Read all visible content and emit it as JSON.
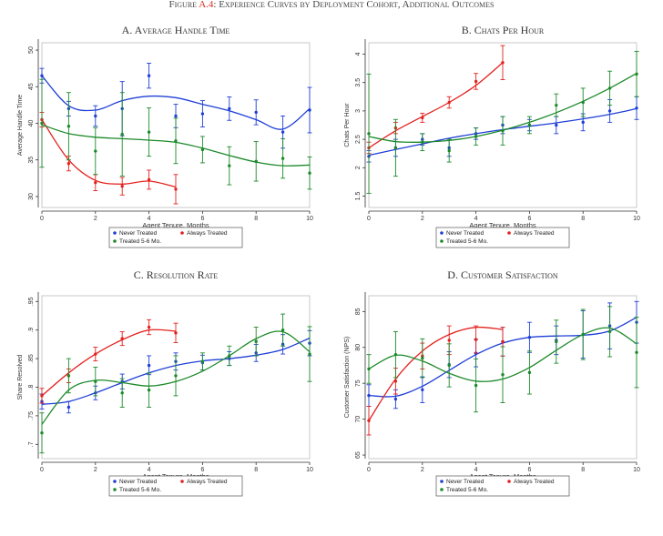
{
  "figure": {
    "title_prefix": "Figure ",
    "title_ref": "A.4",
    "title_suffix": ": Experience Curves by Deployment Cohort, Additional Outcomes"
  },
  "colors": {
    "never": "#1f3fd6",
    "always": "#e3221e",
    "treated56": "#1c8a2a"
  },
  "legend": {
    "never": "Never Treated",
    "always": "Always Treated",
    "treated56": "Treated 5-6 Mo."
  },
  "chart_data": [
    {
      "type": "scatter",
      "title": "A. Average Handle Time",
      "xlabel": "Agent Tenure, Months",
      "ylabel": "Average Handle Time",
      "xlim": [
        0,
        10
      ],
      "ylim": [
        28.5,
        51
      ],
      "xticks": [
        0,
        2,
        4,
        6,
        8,
        10
      ],
      "yticks": [
        30,
        35,
        40,
        45,
        50
      ],
      "ytick_labels": [
        "30",
        "35",
        "40",
        "45",
        "50"
      ],
      "series": [
        {
          "name": "Never Treated",
          "key": "never",
          "x": [
            0,
            1,
            2,
            3,
            4,
            5,
            6,
            7,
            8,
            9,
            10
          ],
          "y": [
            46.5,
            42.0,
            41.0,
            42.0,
            46.5,
            41.0,
            41.3,
            42.0,
            41.5,
            38.8,
            41.8
          ],
          "lo": [
            45.5,
            41.0,
            39.6,
            38.3,
            44.8,
            39.4,
            39.5,
            40.4,
            39.8,
            36.6,
            38.7
          ],
          "hi": [
            47.5,
            43.0,
            42.4,
            45.7,
            48.2,
            42.6,
            43.1,
            43.6,
            43.2,
            41.0,
            44.9
          ],
          "fit": [
            46.5,
            42.4,
            41.8,
            43.1,
            43.7,
            43.5,
            42.6,
            41.7,
            40.5,
            39.2,
            42.0
          ]
        },
        {
          "name": "Always Treated",
          "key": "always",
          "x": [
            0,
            1,
            2,
            3,
            4,
            5
          ],
          "y": [
            40.5,
            34.5,
            31.9,
            31.4,
            32.3,
            31.0
          ],
          "lo": [
            39.5,
            33.5,
            30.8,
            30.2,
            31.0,
            29.0
          ],
          "hi": [
            41.5,
            35.5,
            33.0,
            32.6,
            33.6,
            33.0
          ],
          "fit": [
            40.5,
            35.0,
            32.2,
            31.7,
            32.1,
            31.3
          ]
        },
        {
          "name": "Treated 5-6 Mo.",
          "key": "treated56",
          "x": [
            0,
            1,
            2,
            3,
            4,
            5,
            6,
            7,
            8,
            9,
            10
          ],
          "y": [
            40.0,
            39.6,
            36.2,
            38.5,
            38.8,
            37.6,
            36.4,
            34.2,
            34.8,
            35.2,
            33.2
          ],
          "lo": [
            34.0,
            35.0,
            33.0,
            32.8,
            35.5,
            34.5,
            34.6,
            31.6,
            32.1,
            32.5,
            31.0
          ],
          "hi": [
            46.0,
            44.2,
            39.4,
            44.2,
            42.1,
            40.7,
            38.2,
            36.8,
            37.5,
            37.9,
            35.4
          ],
          "fit": [
            39.8,
            38.6,
            38.1,
            37.9,
            37.7,
            37.4,
            36.6,
            35.6,
            34.7,
            34.2,
            34.3
          ]
        }
      ]
    },
    {
      "type": "scatter",
      "title": "B. Chats Per Hour",
      "xlabel": "Agent Tenure, Months",
      "ylabel": "Chats Per Hour",
      "xlim": [
        0,
        10
      ],
      "ylim": [
        1.3,
        4.2
      ],
      "xticks": [
        0,
        2,
        4,
        6,
        8,
        10
      ],
      "yticks": [
        1.5,
        2,
        2.5,
        3,
        3.5,
        4
      ],
      "ytick_labels": [
        "1.5",
        "2",
        "2.5",
        "3",
        "3.5",
        "4"
      ],
      "series": [
        {
          "name": "Never Treated",
          "key": "never",
          "x": [
            0,
            1,
            2,
            3,
            4,
            5,
            6,
            7,
            8,
            9,
            10
          ],
          "y": [
            2.2,
            2.35,
            2.5,
            2.35,
            2.6,
            2.75,
            2.75,
            2.75,
            2.8,
            3.0,
            3.05
          ],
          "lo": [
            2.1,
            2.2,
            2.4,
            2.2,
            2.5,
            2.6,
            2.65,
            2.6,
            2.65,
            2.8,
            2.85
          ],
          "hi": [
            2.3,
            2.5,
            2.6,
            2.5,
            2.7,
            2.9,
            2.85,
            2.9,
            2.95,
            3.2,
            3.25
          ],
          "fit": [
            2.22,
            2.32,
            2.42,
            2.52,
            2.6,
            2.67,
            2.73,
            2.79,
            2.86,
            2.94,
            3.04
          ]
        },
        {
          "name": "Always Treated",
          "key": "always",
          "x": [
            0,
            1,
            2,
            3,
            4,
            5
          ],
          "y": [
            2.35,
            2.7,
            2.88,
            3.15,
            3.52,
            3.85
          ],
          "lo": [
            2.25,
            2.6,
            2.8,
            3.05,
            3.38,
            3.55
          ],
          "hi": [
            2.45,
            2.8,
            2.96,
            3.25,
            3.66,
            4.15
          ],
          "fit": [
            2.35,
            2.65,
            2.9,
            3.15,
            3.45,
            3.85
          ]
        },
        {
          "name": "Treated 5-6 Mo.",
          "key": "treated56",
          "x": [
            0,
            1,
            2,
            3,
            4,
            5,
            6,
            7,
            8,
            9,
            10
          ],
          "y": [
            2.6,
            2.35,
            2.45,
            2.3,
            2.55,
            2.65,
            2.75,
            3.1,
            3.15,
            3.4,
            3.65
          ],
          "lo": [
            1.55,
            1.85,
            2.3,
            2.1,
            2.4,
            2.4,
            2.6,
            2.9,
            2.9,
            3.1,
            3.25
          ],
          "hi": [
            3.65,
            2.85,
            2.6,
            2.5,
            2.7,
            2.9,
            2.9,
            3.3,
            3.4,
            3.7,
            4.05
          ],
          "fit": [
            2.55,
            2.46,
            2.45,
            2.48,
            2.55,
            2.66,
            2.8,
            2.97,
            3.17,
            3.4,
            3.66
          ]
        }
      ]
    },
    {
      "type": "scatter",
      "title": "C. Resolution Rate",
      "xlabel": "Agent Tenure, Months",
      "ylabel": "Share Resolved",
      "xlim": [
        0,
        10
      ],
      "ylim": [
        0.675,
        0.96
      ],
      "xticks": [
        0,
        2,
        4,
        6,
        8,
        10
      ],
      "yticks": [
        0.7,
        0.75,
        0.8,
        0.85,
        0.9,
        0.95
      ],
      "ytick_labels": [
        ".7",
        ".75",
        ".8",
        ".85",
        ".9",
        ".95"
      ],
      "series": [
        {
          "name": "Never Treated",
          "key": "never",
          "x": [
            0,
            1,
            2,
            3,
            4,
            5,
            6,
            7,
            8,
            9,
            10
          ],
          "y": [
            0.775,
            0.765,
            0.79,
            0.81,
            0.838,
            0.845,
            0.843,
            0.85,
            0.86,
            0.875,
            0.877
          ],
          "lo": [
            0.762,
            0.755,
            0.778,
            0.797,
            0.822,
            0.83,
            0.83,
            0.838,
            0.845,
            0.858,
            0.855
          ],
          "hi": [
            0.788,
            0.775,
            0.802,
            0.823,
            0.855,
            0.86,
            0.856,
            0.862,
            0.875,
            0.892,
            0.899
          ],
          "fit": [
            0.77,
            0.775,
            0.79,
            0.808,
            0.825,
            0.838,
            0.846,
            0.85,
            0.856,
            0.866,
            0.886
          ]
        },
        {
          "name": "Always Treated",
          "key": "always",
          "x": [
            0,
            1,
            2,
            3,
            4,
            5
          ],
          "y": [
            0.785,
            0.82,
            0.858,
            0.885,
            0.905,
            0.895
          ],
          "lo": [
            0.772,
            0.808,
            0.846,
            0.873,
            0.892,
            0.878
          ],
          "hi": [
            0.798,
            0.832,
            0.87,
            0.897,
            0.918,
            0.912
          ],
          "fit": [
            0.785,
            0.825,
            0.858,
            0.883,
            0.9,
            0.898
          ]
        },
        {
          "name": "Treated 5-6 Mo.",
          "key": "treated56",
          "x": [
            0,
            1,
            2,
            3,
            4,
            5,
            6,
            7,
            8,
            9,
            10
          ],
          "y": [
            0.72,
            0.82,
            0.81,
            0.79,
            0.795,
            0.82,
            0.845,
            0.855,
            0.88,
            0.9,
            0.858
          ],
          "lo": [
            0.685,
            0.79,
            0.785,
            0.765,
            0.765,
            0.785,
            0.83,
            0.838,
            0.855,
            0.872,
            0.81
          ],
          "hi": [
            0.755,
            0.85,
            0.835,
            0.815,
            0.825,
            0.855,
            0.86,
            0.872,
            0.905,
            0.928,
            0.906
          ],
          "fit": [
            0.735,
            0.795,
            0.812,
            0.808,
            0.802,
            0.81,
            0.828,
            0.855,
            0.885,
            0.897,
            0.862
          ]
        }
      ]
    },
    {
      "type": "scatter",
      "title": "D. Customer Satisfaction",
      "xlabel": "Agent Tenure, Months",
      "ylabel": "Customer Satisfaction (NPS)",
      "xlim": [
        0,
        10
      ],
      "ylim": [
        64.5,
        87.2
      ],
      "xticks": [
        0,
        2,
        4,
        6,
        8,
        10
      ],
      "yticks": [
        65,
        70,
        75,
        80,
        85
      ],
      "ytick_labels": [
        "65",
        "70",
        "75",
        "80",
        "85"
      ],
      "series": [
        {
          "name": "Never Treated",
          "key": "never",
          "x": [
            0,
            1,
            2,
            3,
            4,
            5,
            6,
            7,
            8,
            9,
            10
          ],
          "y": [
            73.3,
            72.8,
            74.1,
            77.6,
            79.2,
            80.8,
            81.4,
            81.0,
            81.8,
            83.0,
            83.5
          ],
          "lo": [
            71.8,
            71.5,
            72.3,
            75.8,
            77.3,
            78.8,
            79.3,
            79.0,
            78.5,
            79.8,
            80.6
          ],
          "hi": [
            74.8,
            74.1,
            75.9,
            79.4,
            81.1,
            82.8,
            83.5,
            83.0,
            85.1,
            86.2,
            86.4
          ],
          "fit": [
            73.3,
            73.2,
            74.6,
            76.8,
            79.0,
            80.6,
            81.4,
            81.6,
            81.7,
            82.3,
            84.2
          ]
        },
        {
          "name": "Always Treated",
          "key": "always",
          "x": [
            0,
            1,
            2,
            3,
            4,
            5
          ],
          "y": [
            69.8,
            75.3,
            78.8,
            81.0,
            81.1,
            80.8
          ],
          "lo": [
            67.8,
            73.5,
            77.0,
            79.0,
            79.2,
            78.8
          ],
          "hi": [
            71.8,
            77.1,
            80.6,
            83.0,
            83.0,
            82.8
          ],
          "fit": [
            69.8,
            75.6,
            79.5,
            81.8,
            82.8,
            82.5
          ]
        },
        {
          "name": "Treated 5-6 Mo.",
          "key": "treated56",
          "x": [
            0,
            1,
            2,
            3,
            4,
            5,
            6,
            7,
            8,
            9,
            10
          ],
          "y": [
            77.0,
            79.0,
            78.5,
            77.5,
            74.7,
            76.2,
            76.5,
            80.8,
            81.8,
            82.2,
            79.3
          ],
          "lo": [
            75.0,
            75.8,
            75.8,
            74.5,
            71.0,
            72.3,
            73.5,
            77.8,
            78.3,
            78.7,
            74.4
          ],
          "hi": [
            79.0,
            82.2,
            81.2,
            80.5,
            78.4,
            80.1,
            79.5,
            83.8,
            85.3,
            85.7,
            84.2
          ],
          "fit": [
            77.0,
            78.9,
            78.1,
            76.4,
            75.3,
            75.6,
            77.2,
            79.6,
            81.8,
            82.7,
            80.5
          ]
        }
      ]
    }
  ]
}
